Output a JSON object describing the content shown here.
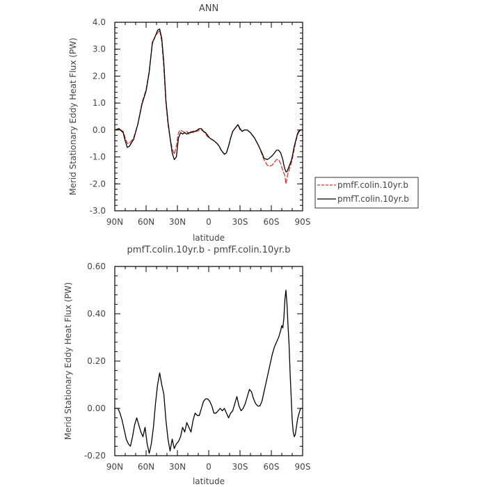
{
  "chart_data": [
    {
      "type": "line",
      "title": "ANN",
      "xlabel": "latitude",
      "ylabel": "Merid Stationary Eddy Heat Flux (PW)",
      "xlim": [
        90,
        -90
      ],
      "ylim": [
        -3.0,
        4.0
      ],
      "xticks": [
        90,
        60,
        30,
        0,
        -30,
        -60,
        -90
      ],
      "xtick_labels": [
        "90N",
        "60N",
        "30N",
        "0",
        "30S",
        "60S",
        "90S"
      ],
      "yticks": [
        4.0,
        3.0,
        2.0,
        1.0,
        0.0,
        -1.0,
        -2.0,
        -3.0
      ],
      "ytick_labels": [
        "4.0",
        "3.0",
        "2.0",
        "1.0",
        "0.0",
        "-1.0",
        "-2.0",
        "-3.0"
      ],
      "legend": "right",
      "series": [
        {
          "name": "pmfF.colin.10yr.b",
          "color": "#e0302a",
          "dash": true,
          "x": [
            90,
            86,
            82,
            80,
            78,
            76,
            72,
            68,
            64,
            60,
            57,
            54,
            51,
            49,
            47,
            45,
            43,
            41,
            39,
            37,
            35,
            33,
            31,
            29,
            27,
            25,
            23,
            21,
            19,
            17,
            15,
            13,
            11,
            9,
            7,
            5,
            3,
            1,
            -1,
            -3,
            -5,
            -8,
            -10,
            -12,
            -15,
            -17,
            -19,
            -21,
            -23,
            -26,
            -28,
            -30,
            -32,
            -34,
            -37,
            -40,
            -44,
            -48,
            -51,
            -53,
            -56,
            -58,
            -61,
            -63,
            -65,
            -67,
            -69,
            -71,
            -72,
            -73,
            -74,
            -75,
            -76,
            -77,
            -78,
            -79,
            -80,
            -81,
            -82,
            -83,
            -84,
            -85,
            -86,
            -88,
            -90
          ],
          "y": [
            0.0,
            0.05,
            -0.05,
            -0.3,
            -0.5,
            -0.5,
            -0.3,
            0.2,
            1.0,
            1.5,
            2.2,
            3.2,
            3.5,
            3.6,
            3.7,
            3.3,
            2.3,
            1.0,
            0.2,
            -0.3,
            -0.7,
            -0.9,
            -0.6,
            -0.1,
            0.0,
            -0.05,
            -0.1,
            -0.05,
            -0.15,
            -0.05,
            -0.1,
            -0.05,
            -0.05,
            0.0,
            0.0,
            -0.05,
            -0.15,
            -0.25,
            -0.3,
            -0.35,
            -0.4,
            -0.5,
            -0.6,
            -0.75,
            -0.9,
            -0.85,
            -0.6,
            -0.3,
            -0.05,
            0.1,
            0.2,
            0.0,
            -0.05,
            0.0,
            0.0,
            -0.1,
            -0.3,
            -0.6,
            -0.9,
            -1.1,
            -1.3,
            -1.35,
            -1.3,
            -1.2,
            -1.1,
            -1.1,
            -1.25,
            -1.5,
            -1.6,
            -1.7,
            -2.0,
            -1.8,
            -1.6,
            -1.5,
            -1.35,
            -1.25,
            -1.1,
            -0.9,
            -0.7,
            -0.5,
            -0.35,
            -0.2,
            -0.1,
            0.0,
            0.0
          ]
        },
        {
          "name": "pmfT.colin.10yr.b",
          "color": "#000000",
          "dash": false,
          "x": [
            90,
            86,
            82,
            80,
            78,
            76,
            72,
            68,
            64,
            60,
            57,
            54,
            51,
            49,
            47,
            45,
            43,
            41,
            39,
            37,
            35,
            33,
            31,
            29,
            27,
            25,
            23,
            21,
            19,
            17,
            15,
            13,
            11,
            9,
            7,
            5,
            3,
            1,
            -1,
            -3,
            -5,
            -8,
            -10,
            -12,
            -15,
            -17,
            -19,
            -21,
            -23,
            -26,
            -28,
            -30,
            -32,
            -34,
            -37,
            -40,
            -44,
            -48,
            -51,
            -53,
            -56,
            -58,
            -61,
            -63,
            -65,
            -67,
            -69,
            -71,
            -72,
            -73,
            -74,
            -75,
            -76,
            -77,
            -78,
            -79,
            -80,
            -81,
            -82,
            -83,
            -84,
            -85,
            -86,
            -88,
            -90
          ],
          "y": [
            0.0,
            0.05,
            -0.1,
            -0.4,
            -0.65,
            -0.6,
            -0.35,
            0.2,
            0.95,
            1.45,
            2.15,
            3.25,
            3.5,
            3.7,
            3.75,
            3.4,
            2.5,
            1.1,
            0.3,
            -0.3,
            -0.85,
            -1.1,
            -1.0,
            -0.3,
            -0.1,
            -0.15,
            -0.1,
            -0.15,
            -0.1,
            -0.1,
            -0.05,
            -0.05,
            0.0,
            0.05,
            0.05,
            -0.05,
            -0.1,
            -0.2,
            -0.3,
            -0.35,
            -0.4,
            -0.5,
            -0.6,
            -0.75,
            -0.9,
            -0.85,
            -0.6,
            -0.3,
            -0.05,
            0.1,
            0.2,
            0.05,
            -0.05,
            0.0,
            0.0,
            -0.1,
            -0.3,
            -0.6,
            -0.85,
            -1.05,
            -1.1,
            -1.05,
            -0.95,
            -0.85,
            -0.75,
            -0.75,
            -0.85,
            -1.1,
            -1.3,
            -1.45,
            -1.55,
            -1.55,
            -1.45,
            -1.35,
            -1.25,
            -1.15,
            -1.0,
            -0.8,
            -0.6,
            -0.45,
            -0.3,
            -0.15,
            -0.05,
            0.0,
            0.0
          ]
        }
      ]
    },
    {
      "type": "line",
      "title": "pmfT.colin.10yr.b - pmfF.colin.10yr.b",
      "xlabel": "latitude",
      "ylabel": "Merid Stationary Eddy Heat Flux (PW)",
      "xlim": [
        90,
        -90
      ],
      "ylim": [
        -0.2,
        0.6
      ],
      "xticks": [
        90,
        60,
        30,
        0,
        -30,
        -60,
        -90
      ],
      "xtick_labels": [
        "90N",
        "60N",
        "30N",
        "0",
        "30S",
        "60S",
        "90S"
      ],
      "yticks": [
        0.6,
        0.4,
        0.2,
        0.0,
        -0.2
      ],
      "ytick_labels": [
        "0.60",
        "0.40",
        "0.20",
        "0.00",
        "-0.20"
      ],
      "series": [
        {
          "color": "#000000",
          "dash": false,
          "x": [
            90,
            87,
            85,
            83,
            81,
            79,
            77,
            75,
            73,
            71,
            69,
            67,
            65,
            63,
            61,
            59,
            57,
            55,
            53,
            51,
            49,
            47,
            45,
            43,
            41,
            39,
            37,
            35,
            33,
            31,
            29,
            27,
            25,
            23,
            21,
            19,
            17,
            15,
            13,
            11,
            9,
            7,
            5,
            3,
            1,
            -1,
            -3,
            -5,
            -7,
            -9,
            -11,
            -13,
            -15,
            -17,
            -19,
            -21,
            -23,
            -25,
            -27,
            -29,
            -31,
            -33,
            -35,
            -37,
            -39,
            -41,
            -43,
            -45,
            -47,
            -49,
            -51,
            -53,
            -55,
            -57,
            -59,
            -61,
            -63,
            -65,
            -67,
            -69,
            -70,
            -71,
            -72,
            -73,
            -74,
            -75,
            -76,
            -77,
            -78,
            -79,
            -80,
            -81,
            -82,
            -83,
            -84,
            -85,
            -86,
            -88,
            -90
          ],
          "y": [
            0.0,
            0.0,
            -0.02,
            -0.05,
            -0.09,
            -0.13,
            -0.15,
            -0.16,
            -0.12,
            -0.07,
            -0.04,
            -0.07,
            -0.1,
            -0.12,
            -0.08,
            -0.15,
            -0.19,
            -0.15,
            -0.08,
            0.02,
            0.1,
            0.15,
            0.1,
            0.06,
            -0.05,
            -0.13,
            -0.18,
            -0.13,
            -0.17,
            -0.15,
            -0.14,
            -0.12,
            -0.08,
            -0.1,
            -0.06,
            -0.08,
            -0.1,
            -0.05,
            -0.02,
            -0.03,
            -0.03,
            0.0,
            0.03,
            0.04,
            0.04,
            0.03,
            0.01,
            -0.02,
            -0.02,
            -0.01,
            0.0,
            -0.01,
            0.0,
            -0.02,
            -0.04,
            -0.02,
            -0.01,
            0.02,
            0.05,
            0.01,
            -0.01,
            0.0,
            0.02,
            0.05,
            0.08,
            0.07,
            0.04,
            0.02,
            0.01,
            0.01,
            0.03,
            0.07,
            0.11,
            0.15,
            0.19,
            0.23,
            0.26,
            0.28,
            0.3,
            0.33,
            0.35,
            0.34,
            0.38,
            0.46,
            0.5,
            0.44,
            0.35,
            0.27,
            0.15,
            0.05,
            -0.05,
            -0.1,
            -0.12,
            -0.11,
            -0.08,
            -0.05,
            -0.03,
            0.0,
            0.0
          ]
        }
      ]
    }
  ]
}
